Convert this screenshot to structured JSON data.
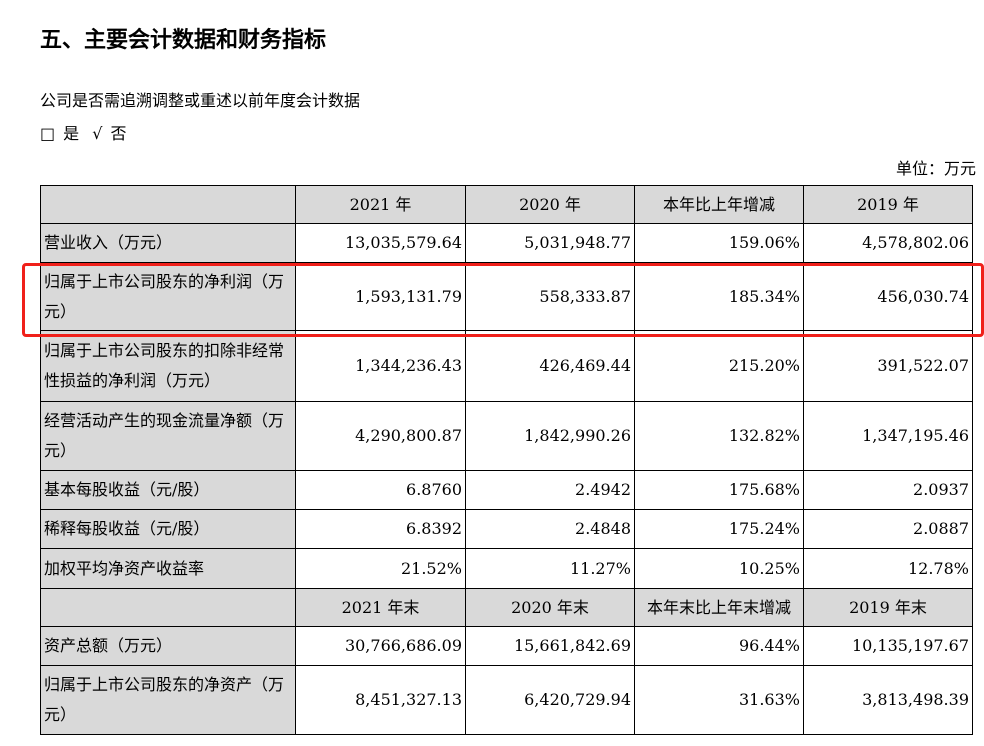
{
  "title": "五、主要会计数据和财务指标",
  "question": "公司是否需追溯调整或重述以前年度会计数据",
  "options": {
    "yes_box": "□",
    "yes": "是",
    "no_check": "√",
    "no": "否"
  },
  "unit": "单位：万元",
  "highlight_color": "#f0201a",
  "table": {
    "header1": [
      "",
      "2021 年",
      "2020 年",
      "本年比上年增减",
      "2019 年"
    ],
    "rows1": [
      [
        "营业收入（万元）",
        "13,035,579.64",
        "5,031,948.77",
        "159.06%",
        "4,578,802.06"
      ],
      [
        "归属于上市公司股东的净利润（万元）",
        "1,593,131.79",
        "558,333.87",
        "185.34%",
        "456,030.74"
      ],
      [
        "归属于上市公司股东的扣除非经常性损益的净利润（万元）",
        "1,344,236.43",
        "426,469.44",
        "215.20%",
        "391,522.07"
      ],
      [
        "经营活动产生的现金流量净额（万元）",
        "4,290,800.87",
        "1,842,990.26",
        "132.82%",
        "1,347,195.46"
      ],
      [
        "基本每股收益（元/股）",
        "6.8760",
        "2.4942",
        "175.68%",
        "2.0937"
      ],
      [
        "稀释每股收益（元/股）",
        "6.8392",
        "2.4848",
        "175.24%",
        "2.0887"
      ],
      [
        "加权平均净资产收益率",
        "21.52%",
        "11.27%",
        "10.25%",
        "12.78%"
      ]
    ],
    "header2": [
      "",
      "2021 年末",
      "2020 年末",
      "本年末比上年末增减",
      "2019 年末"
    ],
    "rows2": [
      [
        "资产总额（万元）",
        "30,766,686.09",
        "15,661,842.69",
        "96.44%",
        "10,135,197.67"
      ],
      [
        "归属于上市公司股东的净资产（万元）",
        "8,451,327.13",
        "6,420,729.94",
        "31.63%",
        "3,813,498.39"
      ]
    ]
  }
}
